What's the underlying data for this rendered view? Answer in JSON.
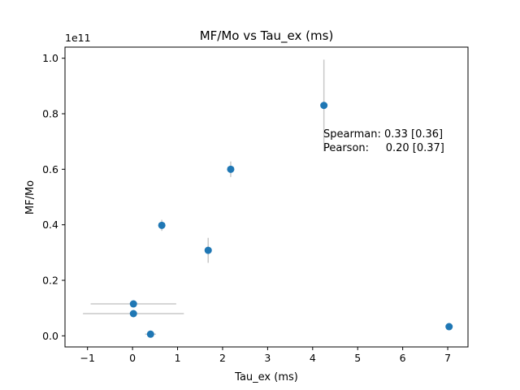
{
  "chart_data": {
    "type": "scatter",
    "title": "MF/Mo vs Tau_ex (ms)",
    "xlabel": "Tau_ex (ms)",
    "ylabel": "MF/Mo",
    "y_offset_text": "1e11",
    "xlim": [
      -1.5,
      7.45
    ],
    "ylim": [
      -0.04,
      1.04
    ],
    "x_ticks": [
      -1,
      0,
      1,
      2,
      3,
      4,
      5,
      6,
      7
    ],
    "x_tick_labels": [
      "−1",
      "0",
      "1",
      "2",
      "3",
      "4",
      "5",
      "6",
      "7"
    ],
    "y_ticks": [
      0.0,
      0.2,
      0.4,
      0.6,
      0.8,
      1.0
    ],
    "y_tick_labels": [
      "0.0",
      "0.2",
      "0.4",
      "0.6",
      "0.8",
      "1.0"
    ],
    "point_color": "#1f77b4",
    "errorbar_color": "#c8c8c8",
    "points": [
      {
        "x": 0.02,
        "y": 0.115,
        "xerr": 0.95,
        "yerr": 0.008
      },
      {
        "x": 0.02,
        "y": 0.08,
        "xerr": 1.12,
        "yerr": 0.008
      },
      {
        "x": 0.4,
        "y": 0.006,
        "xerr": 0.12,
        "yerr": 0.006
      },
      {
        "x": 0.65,
        "y": 0.398,
        "xerr": 0.0,
        "yerr": 0.02
      },
      {
        "x": 1.68,
        "y": 0.308,
        "xerr": 0.0,
        "yerr": 0.045
      },
      {
        "x": 2.18,
        "y": 0.6,
        "xerr": 0.0,
        "yerr": 0.028
      },
      {
        "x": 4.25,
        "y": 0.83,
        "xerr": 0.0,
        "yerr": 0.165
      },
      {
        "x": 7.03,
        "y": 0.033,
        "xerr": 0.0,
        "yerr": 0.004
      }
    ],
    "annotations": [
      "Spearman: 0.33 [0.36]",
      "Pearson:     0.20 [0.37]"
    ]
  }
}
